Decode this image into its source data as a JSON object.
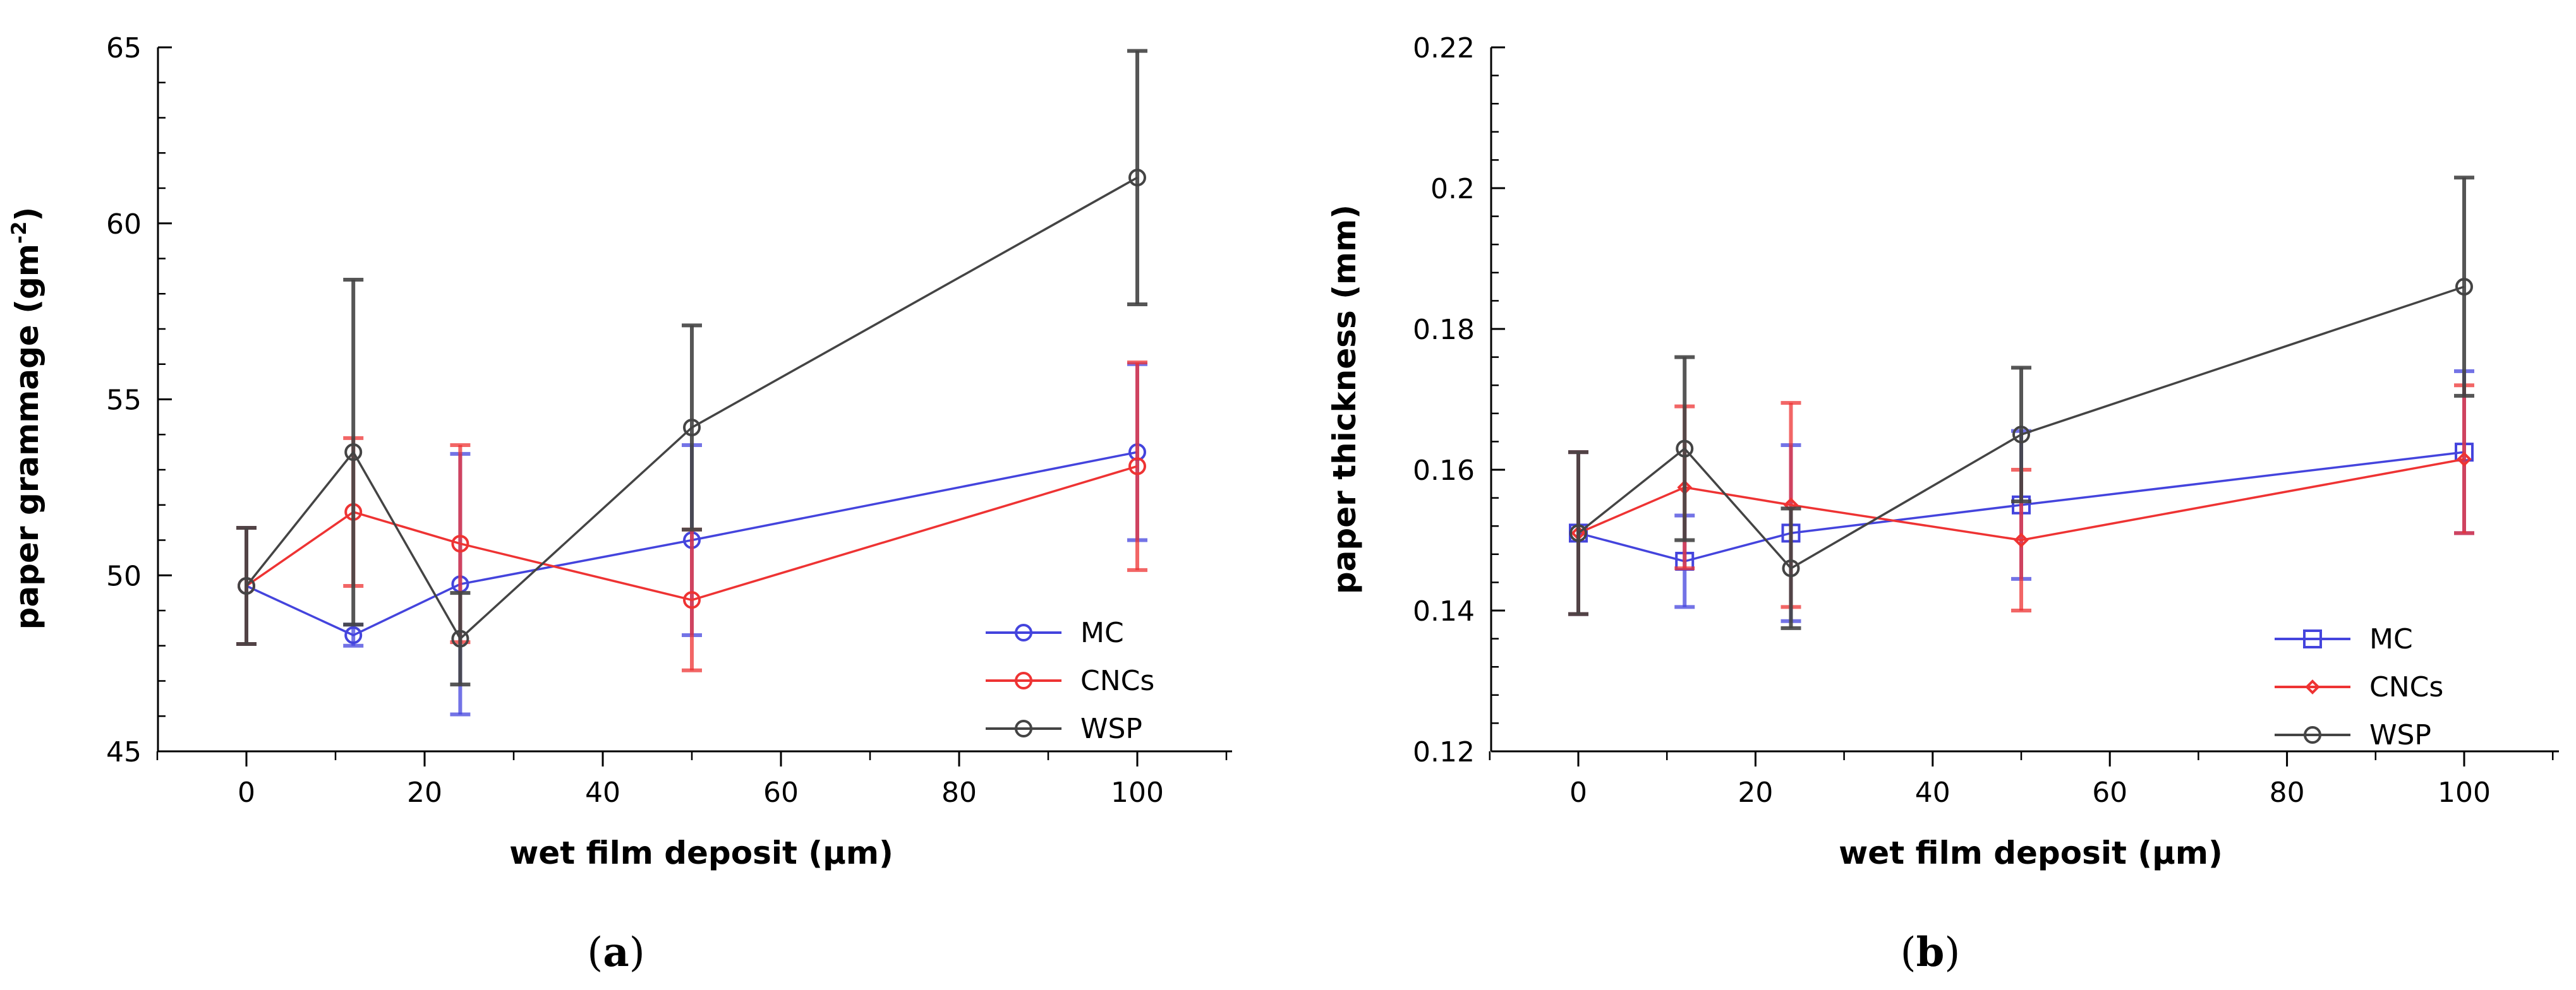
{
  "figure": {
    "panels": [
      {
        "caption_open": "(",
        "caption_letter": "a",
        "caption_close": ")"
      },
      {
        "caption_open": "(",
        "caption_letter": "b",
        "caption_close": ")"
      }
    ]
  },
  "colors": {
    "MC": "#4444dd",
    "CNCs": "#ee3333",
    "WSP": "#444444",
    "axis": "#000000"
  },
  "chart_data": [
    {
      "type": "line",
      "xlabel": "wet film deposit (µm)",
      "ylabel_main": "paper grammage (gm",
      "ylabel_sup": "-2",
      "ylabel_end": ")",
      "xlim": [
        -10,
        110
      ],
      "ylim": [
        45,
        65
      ],
      "x_ticks": [
        0,
        20,
        40,
        60,
        80,
        100
      ],
      "x_tick_labels": [
        "0",
        "20",
        "40",
        "60",
        "80",
        "100"
      ],
      "y_ticks": [
        45,
        50,
        55,
        60,
        65
      ],
      "y_tick_labels": [
        "45",
        "50",
        "55",
        "60",
        "65"
      ],
      "legend_position": "bottom-right",
      "series": [
        {
          "name": "MC",
          "marker": "circle",
          "x": [
            0,
            12,
            24,
            50,
            100
          ],
          "values": [
            49.7,
            48.3,
            49.75,
            51.0,
            53.5
          ],
          "err": [
            1.65,
            0.3,
            3.7,
            2.7,
            2.5
          ]
        },
        {
          "name": "CNCs",
          "marker": "circle",
          "x": [
            0,
            12,
            24,
            50,
            100
          ],
          "values": [
            49.7,
            51.8,
            50.9,
            49.3,
            53.1
          ],
          "err": [
            1.65,
            2.1,
            2.8,
            2.0,
            2.95
          ]
        },
        {
          "name": "WSP",
          "marker": "circle",
          "x": [
            0,
            12,
            24,
            50,
            100
          ],
          "values": [
            49.7,
            53.5,
            48.2,
            54.2,
            61.3
          ],
          "err": [
            1.65,
            4.9,
            1.3,
            2.9,
            3.6
          ]
        }
      ]
    },
    {
      "type": "line",
      "xlabel": "wet film deposit (µm)",
      "ylabel_main": "paper thickness (mm)",
      "ylabel_sup": "",
      "ylabel_end": "",
      "xlim": [
        -10,
        110
      ],
      "ylim": [
        0.12,
        0.22
      ],
      "x_ticks": [
        0,
        20,
        40,
        60,
        80,
        100
      ],
      "x_tick_labels": [
        "0",
        "20",
        "40",
        "60",
        "80",
        "100"
      ],
      "y_ticks": [
        0.12,
        0.14,
        0.16,
        0.18,
        0.2,
        0.22
      ],
      "y_tick_labels": [
        "0.12",
        "0.14",
        "0.16",
        "0.18",
        "0.2",
        "0.22"
      ],
      "legend_position": "bottom-right",
      "series": [
        {
          "name": "MC",
          "marker": "square",
          "x": [
            0,
            12,
            24,
            50,
            100
          ],
          "values": [
            0.151,
            0.147,
            0.151,
            0.155,
            0.1625
          ],
          "err": [
            0.0115,
            0.0065,
            0.0125,
            0.0105,
            0.0115
          ]
        },
        {
          "name": "CNCs",
          "marker": "diamond",
          "x": [
            0,
            12,
            24,
            50,
            100
          ],
          "values": [
            0.151,
            0.1575,
            0.155,
            0.15,
            0.1615
          ],
          "err": [
            0.0115,
            0.0115,
            0.0145,
            0.01,
            0.0105
          ]
        },
        {
          "name": "WSP",
          "marker": "circle",
          "x": [
            0,
            12,
            24,
            50,
            100
          ],
          "values": [
            0.151,
            0.163,
            0.146,
            0.165,
            0.186
          ],
          "err": [
            0.0115,
            0.013,
            0.0085,
            0.0095,
            0.0155
          ]
        }
      ]
    }
  ]
}
